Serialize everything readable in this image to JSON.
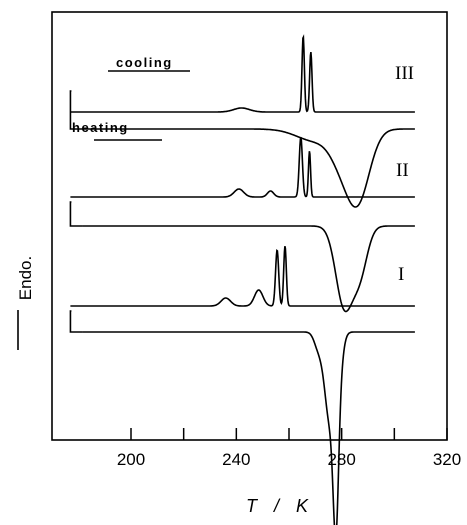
{
  "chart_data": {
    "type": "line",
    "title": "",
    "xlabel": "T / K",
    "ylabel": "Endo.",
    "xlim": [
      170,
      320
    ],
    "xticks": [
      200,
      240,
      280,
      320
    ],
    "xtick_labels": [
      "200",
      "240",
      "280",
      "320"
    ],
    "xminor_ticks": [
      220,
      260,
      300
    ],
    "grid": false,
    "annotations": [
      "cooling",
      "heating"
    ],
    "series": [
      {
        "name": "III",
        "x_start": 177,
        "x_end": 308,
        "cooling_events": [
          {
            "x": 242,
            "height": 0.1,
            "width": 3
          },
          {
            "x": 265.4,
            "height": 1.9,
            "width": 0.45
          },
          {
            "x": 268.3,
            "height": 1.5,
            "width": 0.45
          }
        ],
        "heating_events": [
          {
            "x": 279,
            "depth": 0.5,
            "width": 4
          },
          {
            "x": 286,
            "depth": 1.8,
            "width": 4.5
          },
          {
            "x": 270,
            "depth": 0.3,
            "width": 7
          }
        ]
      },
      {
        "name": "II",
        "x_start": 177,
        "x_end": 308,
        "cooling_events": [
          {
            "x": 241,
            "height": 0.2,
            "width": 1.8
          },
          {
            "x": 253,
            "height": 0.15,
            "width": 1.2
          },
          {
            "x": 264.5,
            "height": 1.5,
            "width": 0.6
          },
          {
            "x": 267.8,
            "height": 1.15,
            "width": 0.4
          }
        ],
        "heating_events": [
          {
            "x": 281,
            "depth": 2.0,
            "width": 3.2
          },
          {
            "x": 287,
            "depth": 1.1,
            "width": 2.8
          }
        ]
      },
      {
        "name": "I",
        "x_start": 177,
        "x_end": 308,
        "cooling_events": [
          {
            "x": 236,
            "height": 0.2,
            "width": 1.8
          },
          {
            "x": 248.5,
            "height": 0.4,
            "width": 1.6
          },
          {
            "x": 255.5,
            "height": 1.4,
            "width": 0.6
          },
          {
            "x": 258.5,
            "height": 1.5,
            "width": 0.5
          }
        ],
        "heating_events": [
          {
            "x": 271,
            "depth": 0.35,
            "width": 1.5
          },
          {
            "x": 275.5,
            "depth": 2.2,
            "width": 2.0
          },
          {
            "x": 277.8,
            "depth": 3.2,
            "width": 1.0
          },
          {
            "x": 278.8,
            "depth": 1.0,
            "width": 1.5
          }
        ]
      }
    ]
  }
}
